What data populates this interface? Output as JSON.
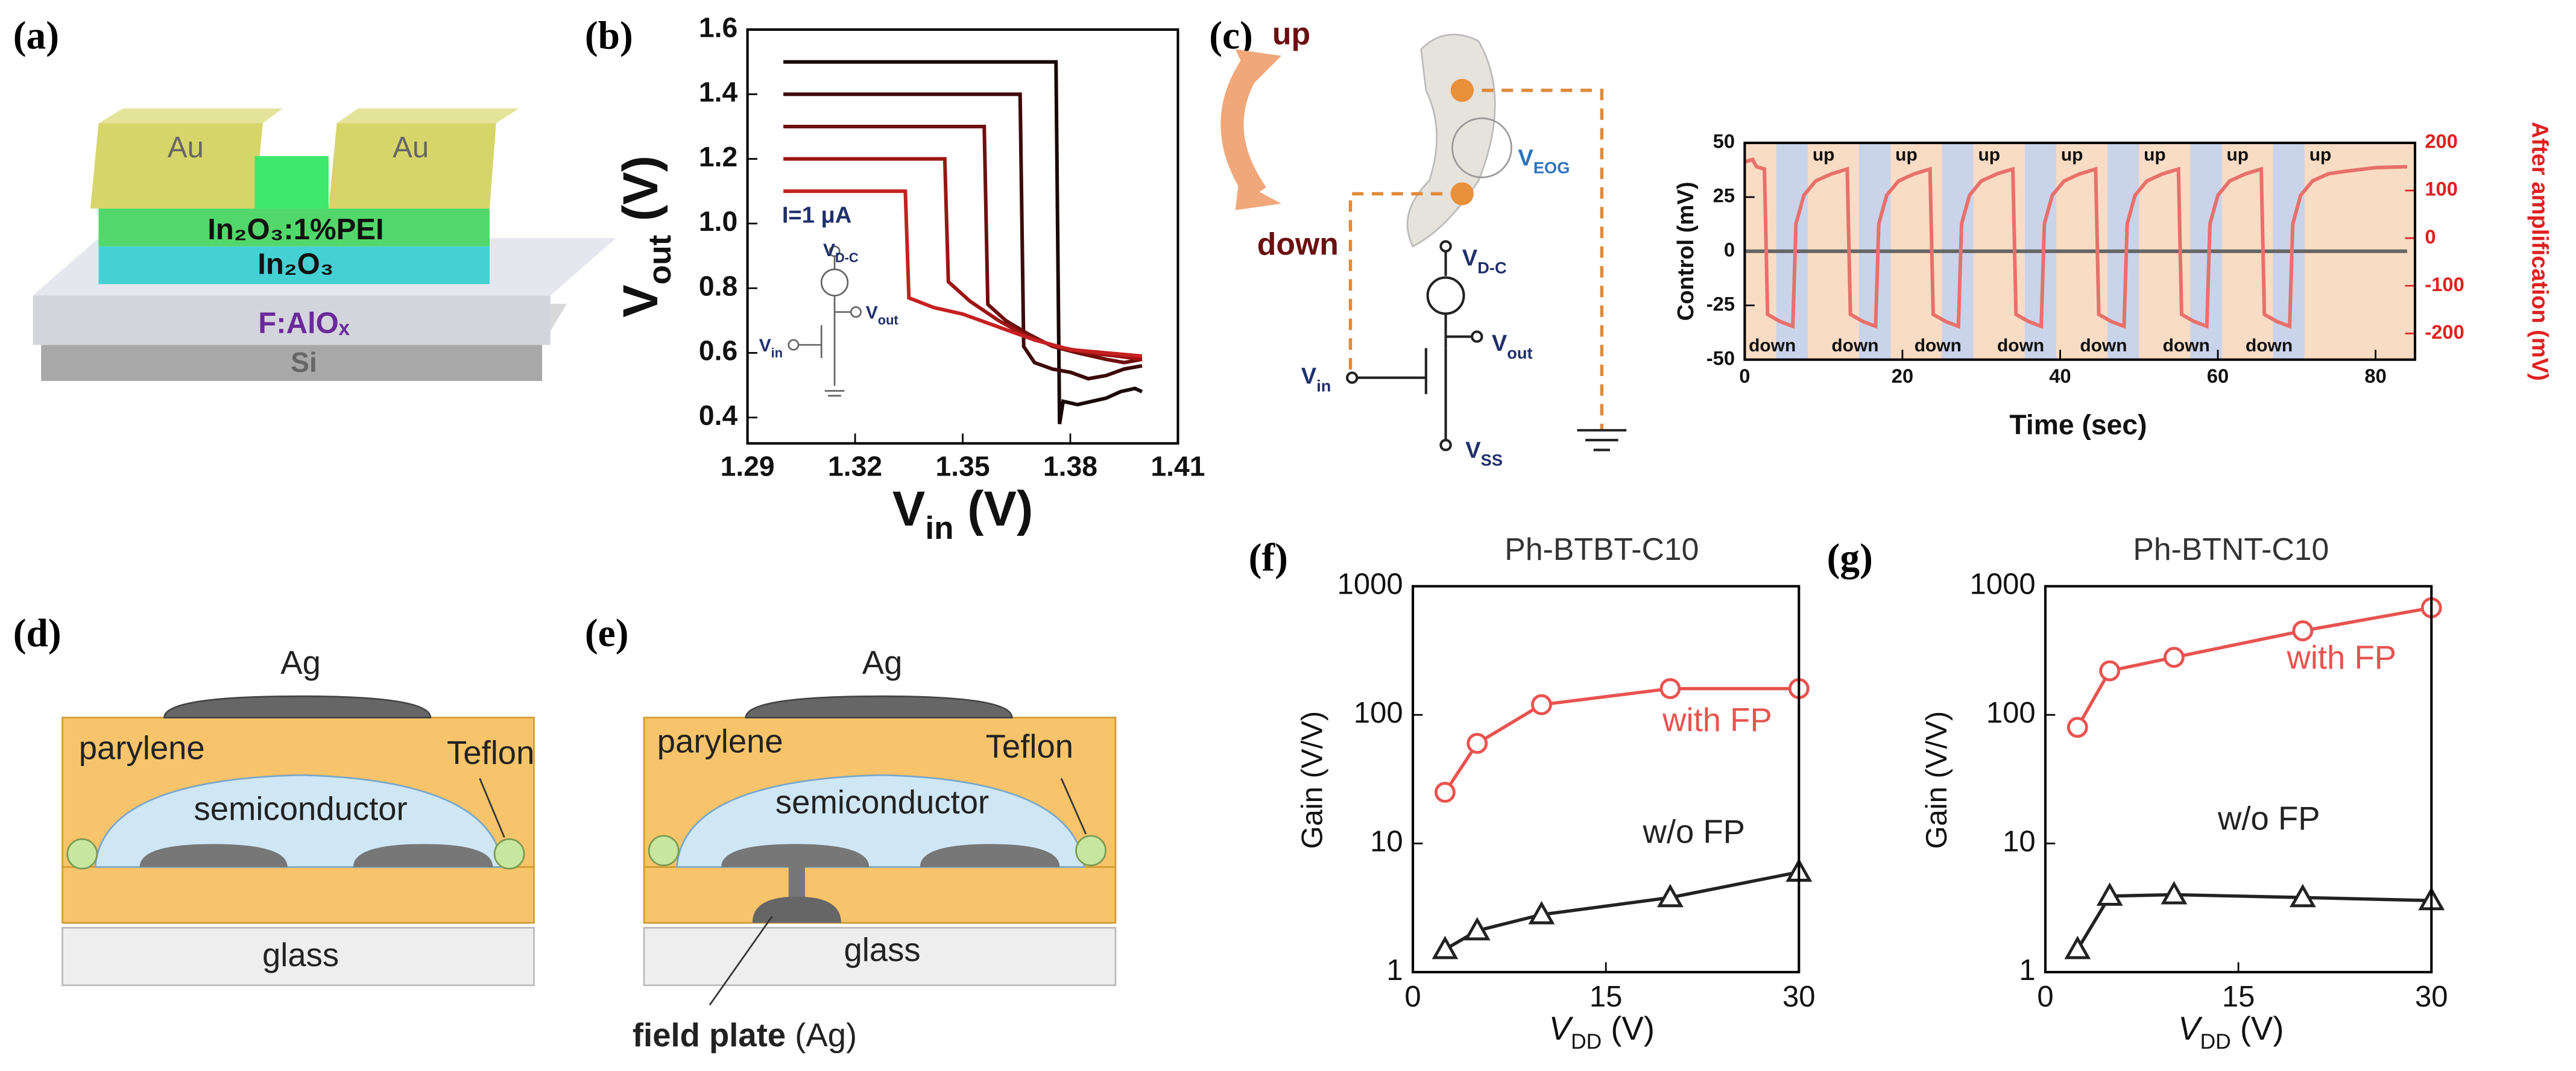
{
  "panel_labels": [
    "(a)",
    "(b)",
    "(c)",
    "(d)",
    "(e)",
    "(f)",
    "(g)"
  ],
  "diagram_a": {
    "layers": [
      "Au",
      "Au",
      "In₂O₃:1%PEI",
      "In₂O₃",
      "F:AlOₓ",
      "Si"
    ]
  },
  "inset_b": {
    "current": "I=1 μA",
    "vdc": {
      "text": "V",
      "sub": "D-C"
    },
    "vout": {
      "text": "V",
      "sub": "out"
    },
    "vin": {
      "text": "V",
      "sub": "in"
    }
  },
  "diagram_c": {
    "up": "up",
    "down": "down",
    "veog": {
      "text": "V",
      "sub": "EOG"
    },
    "vdc": {
      "text": "V",
      "sub": "D-C"
    },
    "vout": {
      "text": "V",
      "sub": "out"
    },
    "vin": {
      "text": "V",
      "sub": "in"
    },
    "vss": {
      "text": "V",
      "sub": "SS"
    }
  },
  "diagram_d": {
    "electrode": "Ag",
    "dielectric": "parylene",
    "bank": "Teflon",
    "semiconductor": "semiconductor",
    "substrate": "glass"
  },
  "diagram_e": {
    "electrode": "Ag",
    "dielectric": "parylene",
    "bank": "Teflon",
    "semiconductor": "semiconductor",
    "substrate": "glass",
    "field_plate": "field plate",
    "field_plate_material": "(Ag)"
  },
  "chart_data": [
    {
      "type": "line",
      "xlabel": {
        "text": "V",
        "sub": "in",
        "after": " (V)"
      },
      "ylabel": {
        "text": "V",
        "sub": "out",
        "after": " (V)"
      },
      "xlim": [
        1.29,
        1.41
      ],
      "xticks": [
        1.29,
        1.32,
        1.35,
        1.38,
        1.41
      ],
      "ylim": [
        0.32,
        1.6
      ],
      "yticks": [
        0.4,
        0.6,
        0.8,
        {
          "value": 1,
          "label": "1.0"
        },
        1.2,
        1.4,
        1.6
      ],
      "series": [
        {
          "color": "#1a0808",
          "x": [
            1.3,
            1.376,
            1.377,
            1.378,
            1.382,
            1.386,
            1.39,
            1.394,
            1.398,
            1.4
          ],
          "values": [
            1.5,
            1.5,
            0.38,
            0.45,
            0.44,
            0.45,
            0.46,
            0.48,
            0.49,
            0.48
          ]
        },
        {
          "color": "#3d0a0a",
          "x": [
            1.3,
            1.366,
            1.367,
            1.37,
            1.375,
            1.38,
            1.385,
            1.39,
            1.395,
            1.4
          ],
          "values": [
            1.4,
            1.4,
            0.62,
            0.57,
            0.55,
            0.54,
            0.52,
            0.53,
            0.55,
            0.56
          ]
        },
        {
          "color": "#6e0f0f",
          "x": [
            1.3,
            1.356,
            1.357,
            1.362,
            1.368,
            1.375,
            1.382,
            1.39,
            1.395,
            1.4
          ],
          "values": [
            1.3,
            1.3,
            0.75,
            0.7,
            0.66,
            0.62,
            0.6,
            0.58,
            0.57,
            0.58
          ]
        },
        {
          "color": "#9c1414",
          "x": [
            1.3,
            1.345,
            1.346,
            1.352,
            1.36,
            1.368,
            1.376,
            1.385,
            1.393,
            1.4
          ],
          "values": [
            1.2,
            1.2,
            0.82,
            0.76,
            0.7,
            0.65,
            0.62,
            0.6,
            0.59,
            0.58
          ]
        },
        {
          "color": "#c62020",
          "x": [
            1.3,
            1.334,
            1.335,
            1.342,
            1.35,
            1.36,
            1.37,
            1.38,
            1.39,
            1.4
          ],
          "values": [
            1.1,
            1.1,
            0.77,
            0.74,
            0.72,
            0.68,
            0.64,
            0.61,
            0.6,
            0.59
          ]
        }
      ]
    },
    {
      "type": "line",
      "xlabel": "Time (sec)",
      "ylabel": "Control (mV)",
      "y2label": "After amplification (mV)",
      "xlim": [
        0,
        85
      ],
      "xticks": [
        0,
        20,
        40,
        60,
        80
      ],
      "ylim": [
        -50,
        50
      ],
      "yticks": [
        -50,
        -25,
        0,
        25,
        50
      ],
      "y2lim": [
        -255,
        200
      ],
      "y2ticks": [
        -200,
        -100,
        0,
        100,
        200
      ],
      "y2color": "#e02020",
      "plot_background": "#f9dcc4",
      "band_color": "#c9d3ea",
      "bands": [
        [
          4,
          8
        ],
        [
          14.5,
          18.5
        ],
        [
          25,
          29
        ],
        [
          35.5,
          39.5
        ],
        [
          46,
          50
        ],
        [
          56.5,
          60.5
        ],
        [
          67,
          71
        ]
      ],
      "annotations": [
        {
          "text": "up",
          "x": 10,
          "y": 44
        },
        {
          "text": "up",
          "x": 20.5,
          "y": 44
        },
        {
          "text": "up",
          "x": 31,
          "y": 44
        },
        {
          "text": "up",
          "x": 41.5,
          "y": 44
        },
        {
          "text": "up",
          "x": 52,
          "y": 44
        },
        {
          "text": "up",
          "x": 62.5,
          "y": 44
        },
        {
          "text": "up",
          "x": 73,
          "y": 44
        },
        {
          "text": "down",
          "x": 3.5,
          "y": -44
        },
        {
          "text": "down",
          "x": 14,
          "y": -44
        },
        {
          "text": "down",
          "x": 24.5,
          "y": -44
        },
        {
          "text": "down",
          "x": 35,
          "y": -44
        },
        {
          "text": "down",
          "x": 45.5,
          "y": -44
        },
        {
          "text": "down",
          "x": 56,
          "y": -44
        },
        {
          "text": "down",
          "x": 66.5,
          "y": -44
        }
      ],
      "series": [
        {
          "color": "#666666",
          "x": [
            0,
            84
          ],
          "values": [
            0,
            0
          ]
        },
        {
          "color": "#e8706b",
          "axis": "y2",
          "x": [
            0,
            1,
            1.5,
            2.5,
            2.9,
            4.5,
            6.1,
            6.5,
            7.5,
            9,
            11,
            13,
            13.4,
            15,
            16.6,
            17,
            18,
            19.5,
            21.5,
            23.5,
            23.9,
            25.5,
            27.1,
            27.5,
            28.5,
            30,
            32,
            34,
            34.4,
            36,
            37.6,
            38,
            39,
            40.5,
            42.5,
            44.5,
            44.9,
            46.5,
            48.1,
            48.5,
            49.5,
            51,
            53,
            55,
            55.4,
            57,
            58.6,
            59,
            60,
            61.5,
            63.5,
            65.5,
            65.9,
            67.5,
            69.1,
            69.5,
            70.5,
            72,
            74,
            76,
            80,
            84
          ],
          "values": [
            160,
            165,
            150,
            145,
            -160,
            -175,
            -185,
            30,
            90,
            120,
            135,
            145,
            -160,
            -175,
            -185,
            30,
            90,
            120,
            135,
            145,
            -160,
            -175,
            -185,
            30,
            90,
            120,
            135,
            145,
            -160,
            -175,
            -185,
            30,
            90,
            120,
            135,
            145,
            -160,
            -175,
            -185,
            30,
            90,
            120,
            135,
            145,
            -160,
            -175,
            -185,
            30,
            90,
            120,
            135,
            145,
            -160,
            -175,
            -185,
            30,
            90,
            120,
            135,
            140,
            148,
            150
          ]
        }
      ]
    },
    {
      "type": "line",
      "title": "Ph-BTBT-C10",
      "xlabel": {
        "text": "V",
        "sub": "DD",
        "after": " (V)"
      },
      "ylabel": "Gain (V/V)",
      "log_y": true,
      "xlim": [
        0,
        30
      ],
      "xticks": [
        0,
        15,
        30
      ],
      "ylim": [
        1,
        1000
      ],
      "yticks": [
        1,
        10,
        100,
        1000
      ],
      "x": [
        2.5,
        5,
        10,
        20,
        30
      ],
      "series": [
        {
          "name": "with FP",
          "color": "#e8534f",
          "marker": "circle",
          "values": [
            25,
            60,
            120,
            160,
            160
          ]
        },
        {
          "name": "w/o FP",
          "color": "#222222",
          "marker": "triangle",
          "values": [
            1.5,
            2.1,
            2.8,
            3.8,
            6
          ]
        }
      ]
    },
    {
      "type": "line",
      "title": "Ph-BTNT-C10",
      "xlabel": {
        "text": "V",
        "sub": "DD",
        "after": " (V)"
      },
      "ylabel": "Gain (V/V)",
      "log_y": true,
      "xlim": [
        0,
        30
      ],
      "xticks": [
        0,
        15,
        30
      ],
      "ylim": [
        1,
        1000
      ],
      "yticks": [
        1,
        10,
        100,
        1000
      ],
      "x": [
        2.5,
        5,
        10,
        20,
        30
      ],
      "series": [
        {
          "name": "with FP",
          "color": "#e8534f",
          "marker": "circle",
          "values": [
            80,
            220,
            280,
            450,
            680
          ]
        },
        {
          "name": "w/o FP",
          "color": "#222222",
          "marker": "triangle",
          "values": [
            1.5,
            3.9,
            4,
            3.8,
            3.6
          ]
        }
      ]
    }
  ]
}
